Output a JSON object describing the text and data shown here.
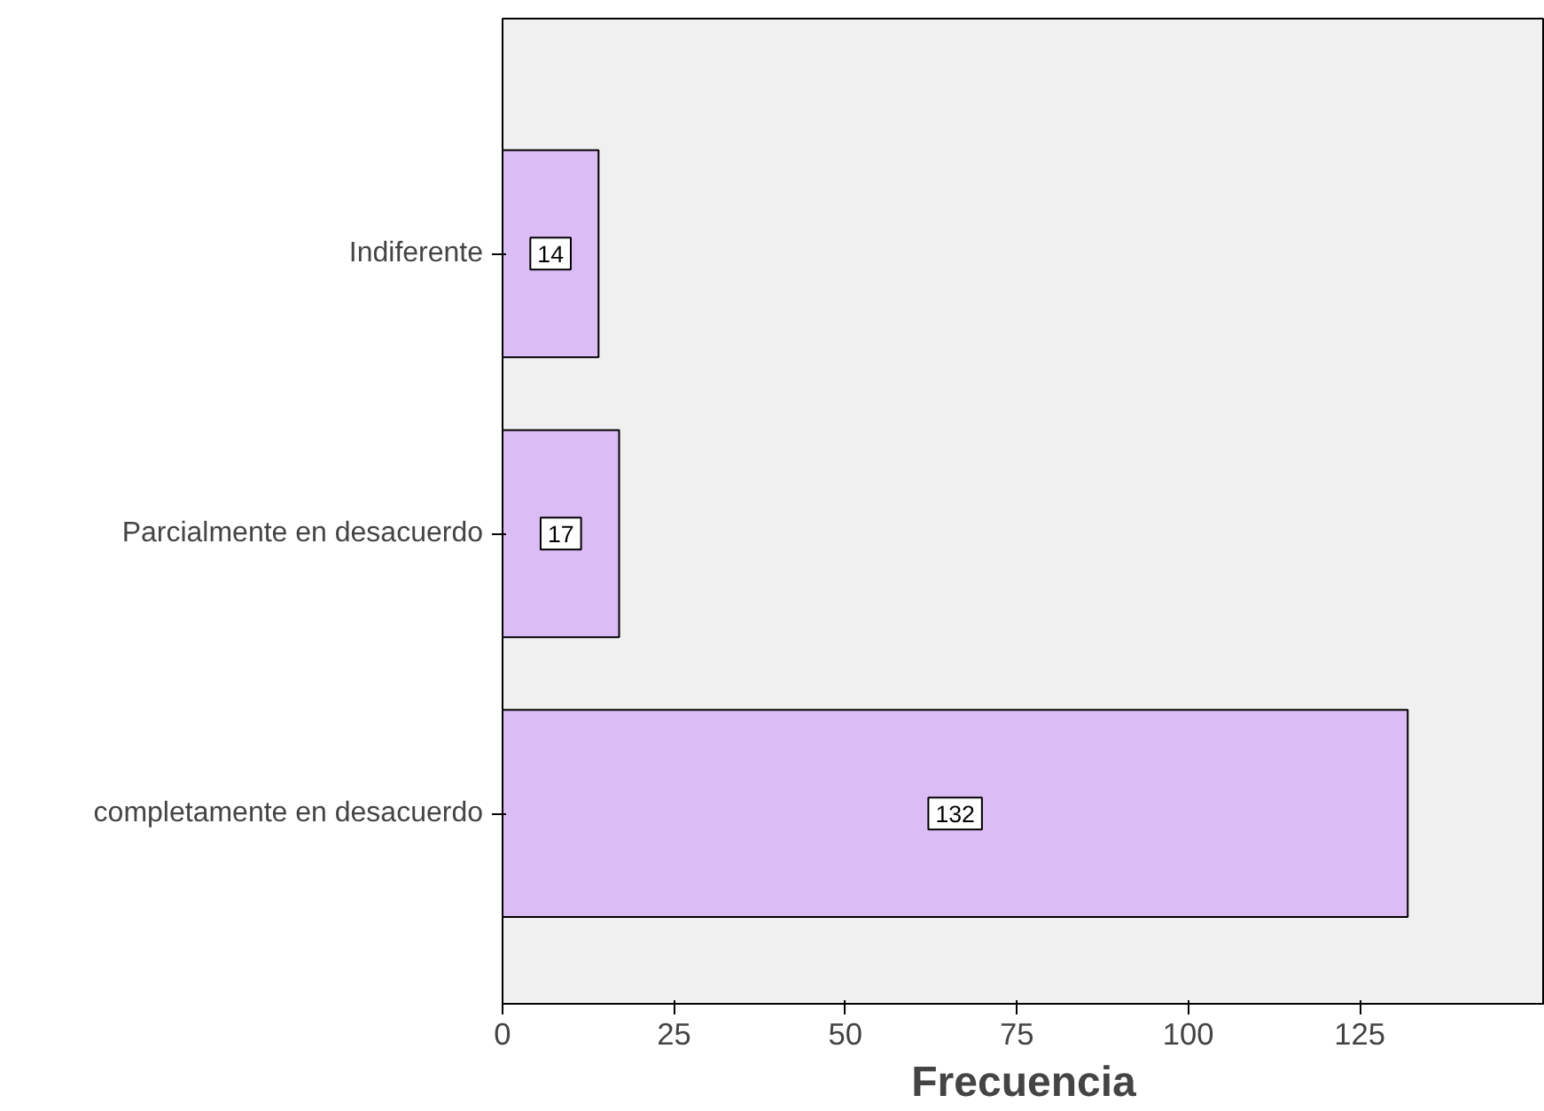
{
  "chart_data": {
    "type": "bar",
    "orientation": "horizontal",
    "xlabel": "Frecuencia",
    "categories": [
      "Indiferente",
      "Parcialmente en desacuerdo",
      "completamente en desacuerdo"
    ],
    "values": [
      14,
      17,
      132
    ],
    "color": "#dcbcf4",
    "xlim": [
      0,
      152
    ],
    "xticks": [
      0,
      25,
      50,
      75,
      100,
      125
    ],
    "grid": false,
    "data_labels": true
  }
}
